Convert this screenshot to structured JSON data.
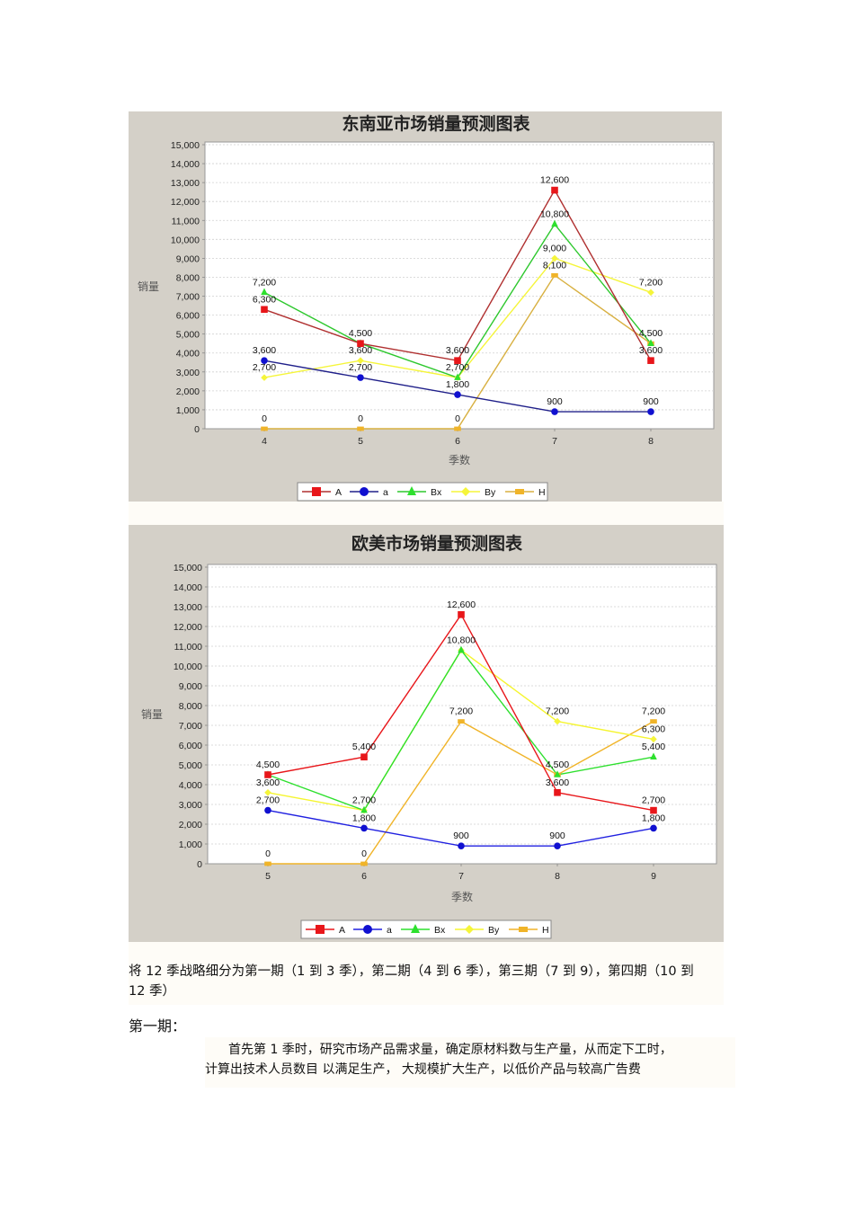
{
  "document": {
    "intro_line1": "将 12 季战略细分为第一期（1 到 3 季），第二期（4 到 6 季），第三期（7 到 9），第四期（10 到",
    "intro_line2": "12 季）",
    "section_heading": "第一期：",
    "body_line1": "首先第 1 季时，研究市场产品需求量，确定原材料数与生产量，从而定下工时，",
    "body_line2": "计算出技术人员数目 以满足生产， 大规模扩大生产，以低价产品与较高广告费"
  },
  "colors": {
    "panel_bg": "#d4d0c8",
    "plot_bg": "#ffffff",
    "grid": "#c8c8c8",
    "A": "#e8161a",
    "a": "#1010d0",
    "Bx": "#2ee02e",
    "By": "#f5f53a",
    "H": "#f0b429"
  },
  "chart_data": [
    {
      "type": "line",
      "title": "东南亚市场销量预测图表",
      "xlabel": "季数",
      "ylabel": "销量",
      "categories": [
        "4",
        "5",
        "6",
        "7",
        "8"
      ],
      "ylim": [
        0,
        15000
      ],
      "yticks": [
        "0",
        "1,000",
        "2,000",
        "3,000",
        "4,000",
        "5,000",
        "6,000",
        "7,000",
        "8,000",
        "9,000",
        "10,000",
        "11,000",
        "12,000",
        "13,000",
        "14,000",
        "15,000"
      ],
      "grid": true,
      "legend_position": "bottom",
      "legend": [
        "A",
        "a",
        "Bx",
        "By",
        "H"
      ],
      "series": [
        {
          "name": "A",
          "marker": "square",
          "line_color": "#b03030",
          "values": [
            6300,
            4500,
            3600,
            12600,
            3600
          ]
        },
        {
          "name": "a",
          "marker": "circle",
          "line_color": "#20208a",
          "values": [
            3600,
            2700,
            1800,
            900,
            900
          ]
        },
        {
          "name": "Bx",
          "marker": "triangle",
          "line_color": "#2ec82e",
          "values": [
            7200,
            4500,
            2700,
            10800,
            4500
          ]
        },
        {
          "name": "By",
          "marker": "diamond",
          "line_color": "#f5f53a",
          "values": [
            2700,
            3600,
            2700,
            9000,
            7200
          ]
        },
        {
          "name": "H",
          "marker": "rect",
          "line_color": "#d8b040",
          "values": [
            0,
            0,
            0,
            8100,
            4500
          ]
        }
      ],
      "labels": [
        {
          "cat": 0,
          "text": "7,200",
          "value": 7200
        },
        {
          "cat": 0,
          "text": "6,300",
          "value": 6300
        },
        {
          "cat": 0,
          "text": "3,600",
          "value": 3600
        },
        {
          "cat": 0,
          "text": "2,700",
          "value": 2700
        },
        {
          "cat": 0,
          "text": "0",
          "value": 0
        },
        {
          "cat": 1,
          "text": "4,500",
          "value": 4500
        },
        {
          "cat": 1,
          "text": "3,600",
          "value": 3600
        },
        {
          "cat": 1,
          "text": "2,700",
          "value": 2700
        },
        {
          "cat": 1,
          "text": "0",
          "value": 0
        },
        {
          "cat": 2,
          "text": "3,600",
          "value": 3600
        },
        {
          "cat": 2,
          "text": "2,700",
          "value": 2700
        },
        {
          "cat": 2,
          "text": "1,800",
          "value": 1800
        },
        {
          "cat": 2,
          "text": "0",
          "value": 0
        },
        {
          "cat": 3,
          "text": "12,600",
          "value": 12600
        },
        {
          "cat": 3,
          "text": "10,800",
          "value": 10800
        },
        {
          "cat": 3,
          "text": "9,000",
          "value": 9000
        },
        {
          "cat": 3,
          "text": "8,100",
          "value": 8100
        },
        {
          "cat": 3,
          "text": "900",
          "value": 900
        },
        {
          "cat": 4,
          "text": "7,200",
          "value": 7200
        },
        {
          "cat": 4,
          "text": "4,500",
          "value": 4500
        },
        {
          "cat": 4,
          "text": "3,600",
          "value": 3600
        },
        {
          "cat": 4,
          "text": "900",
          "value": 900
        }
      ]
    },
    {
      "type": "line",
      "title": "欧美市场销量预测图表",
      "xlabel": "季数",
      "ylabel": "销量",
      "categories": [
        "5",
        "6",
        "7",
        "8",
        "9"
      ],
      "ylim": [
        0,
        15000
      ],
      "yticks": [
        "0",
        "1,000",
        "2,000",
        "3,000",
        "4,000",
        "5,000",
        "6,000",
        "7,000",
        "8,000",
        "9,000",
        "10,000",
        "11,000",
        "12,000",
        "13,000",
        "14,000",
        "15,000"
      ],
      "grid": true,
      "legend_position": "bottom",
      "legend": [
        "A",
        "a",
        "Bx",
        "By",
        "H"
      ],
      "series": [
        {
          "name": "A",
          "marker": "square",
          "line_color": "#e8161a",
          "values": [
            4500,
            5400,
            12600,
            3600,
            2700
          ]
        },
        {
          "name": "a",
          "marker": "circle",
          "line_color": "#2020e0",
          "values": [
            2700,
            1800,
            900,
            900,
            1800
          ]
        },
        {
          "name": "Bx",
          "marker": "triangle",
          "line_color": "#2ee02e",
          "values": [
            4500,
            2700,
            10800,
            4500,
            5400
          ]
        },
        {
          "name": "By",
          "marker": "diamond",
          "line_color": "#f5f530",
          "values": [
            3600,
            2700,
            10800,
            7200,
            6300
          ]
        },
        {
          "name": "H",
          "marker": "rect",
          "line_color": "#f0b429",
          "values": [
            0,
            0,
            7200,
            4500,
            7200
          ]
        }
      ],
      "labels": [
        {
          "cat": 0,
          "text": "4,500",
          "value": 4500
        },
        {
          "cat": 0,
          "text": "3,600",
          "value": 3600
        },
        {
          "cat": 0,
          "text": "2,700",
          "value": 2700
        },
        {
          "cat": 0,
          "text": "0",
          "value": 0
        },
        {
          "cat": 1,
          "text": "5,400",
          "value": 5400
        },
        {
          "cat": 1,
          "text": "2,700",
          "value": 2700
        },
        {
          "cat": 1,
          "text": "1,800",
          "value": 1800
        },
        {
          "cat": 1,
          "text": "0",
          "value": 0
        },
        {
          "cat": 2,
          "text": "12,600",
          "value": 12600
        },
        {
          "cat": 2,
          "text": "10,800",
          "value": 10800
        },
        {
          "cat": 2,
          "text": "7,200",
          "value": 7200
        },
        {
          "cat": 2,
          "text": "900",
          "value": 900
        },
        {
          "cat": 3,
          "text": "7,200",
          "value": 7200
        },
        {
          "cat": 3,
          "text": "4,500",
          "value": 4500
        },
        {
          "cat": 3,
          "text": "3,600",
          "value": 3600
        },
        {
          "cat": 3,
          "text": "900",
          "value": 900
        },
        {
          "cat": 4,
          "text": "7,200",
          "value": 7200
        },
        {
          "cat": 4,
          "text": "6,300",
          "value": 6300
        },
        {
          "cat": 4,
          "text": "5,400",
          "value": 5400
        },
        {
          "cat": 4,
          "text": "2,700",
          "value": 2700
        },
        {
          "cat": 4,
          "text": "1,800",
          "value": 1800
        }
      ]
    }
  ]
}
